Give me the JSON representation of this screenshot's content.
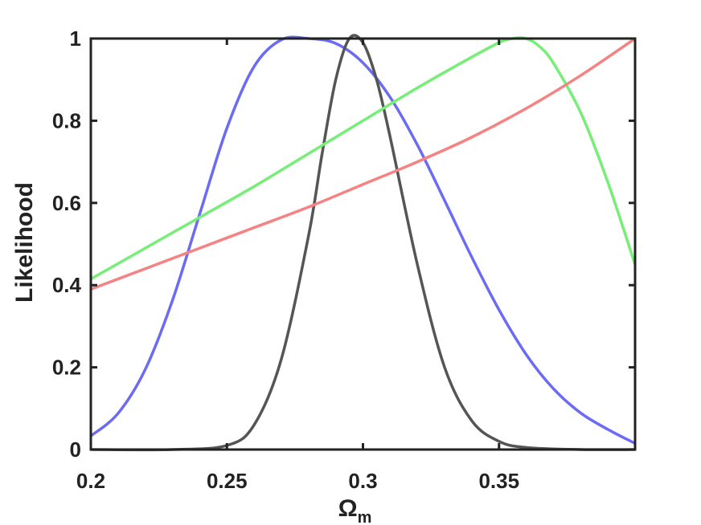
{
  "chart_data": {
    "type": "line",
    "title": "",
    "xlabel": "Ω",
    "xlabel_subscript": "m",
    "ylabel": "Likelihood",
    "xlim": [
      0.2,
      0.4
    ],
    "ylim": [
      0,
      1
    ],
    "xticks": [
      0.2,
      0.25,
      0.3,
      0.35
    ],
    "xtick_labels": [
      "0.2",
      "0.25",
      "0.3",
      "0.35"
    ],
    "yticks": [
      0,
      0.2,
      0.4,
      0.6,
      0.8,
      1
    ],
    "ytick_labels": [
      "0",
      "0.2",
      "0.4",
      "0.6",
      "0.8",
      "1"
    ],
    "grid": false,
    "legend": "none",
    "series": [
      {
        "color": "#6b6bf5",
        "x": [
          0.2,
          0.21,
          0.22,
          0.23,
          0.24,
          0.25,
          0.26,
          0.27,
          0.28,
          0.29,
          0.3,
          0.31,
          0.32,
          0.33,
          0.34,
          0.35,
          0.36,
          0.37,
          0.38,
          0.39,
          0.4
        ],
        "y": [
          0.033,
          0.088,
          0.195,
          0.363,
          0.573,
          0.782,
          0.932,
          0.997,
          1.0,
          0.988,
          0.941,
          0.857,
          0.741,
          0.606,
          0.468,
          0.34,
          0.231,
          0.148,
          0.089,
          0.049,
          0.015
        ]
      },
      {
        "color": "#555555",
        "x": [
          0.2,
          0.23,
          0.25,
          0.26,
          0.27,
          0.28,
          0.285,
          0.29,
          0.295,
          0.3,
          0.305,
          0.31,
          0.32,
          0.33,
          0.34,
          0.35,
          0.36,
          0.38,
          0.4
        ],
        "y": [
          0.0,
          0.0,
          0.01,
          0.06,
          0.22,
          0.52,
          0.72,
          0.9,
          1.0,
          0.99,
          0.9,
          0.76,
          0.45,
          0.2,
          0.07,
          0.02,
          0.005,
          0.0,
          0.0
        ]
      },
      {
        "color": "#77ee77",
        "x": [
          0.2,
          0.22,
          0.24,
          0.26,
          0.28,
          0.3,
          0.32,
          0.34,
          0.35,
          0.355,
          0.36,
          0.365,
          0.37,
          0.38,
          0.39,
          0.4
        ],
        "y": [
          0.415,
          0.49,
          0.565,
          0.64,
          0.72,
          0.8,
          0.88,
          0.955,
          0.99,
          1.0,
          1.0,
          0.98,
          0.94,
          0.82,
          0.65,
          0.45
        ]
      },
      {
        "color": "#f58383",
        "x": [
          0.2,
          0.22,
          0.24,
          0.26,
          0.28,
          0.3,
          0.32,
          0.34,
          0.36,
          0.38,
          0.4
        ],
        "y": [
          0.39,
          0.44,
          0.49,
          0.54,
          0.59,
          0.645,
          0.7,
          0.76,
          0.83,
          0.91,
          1.0
        ]
      }
    ]
  }
}
